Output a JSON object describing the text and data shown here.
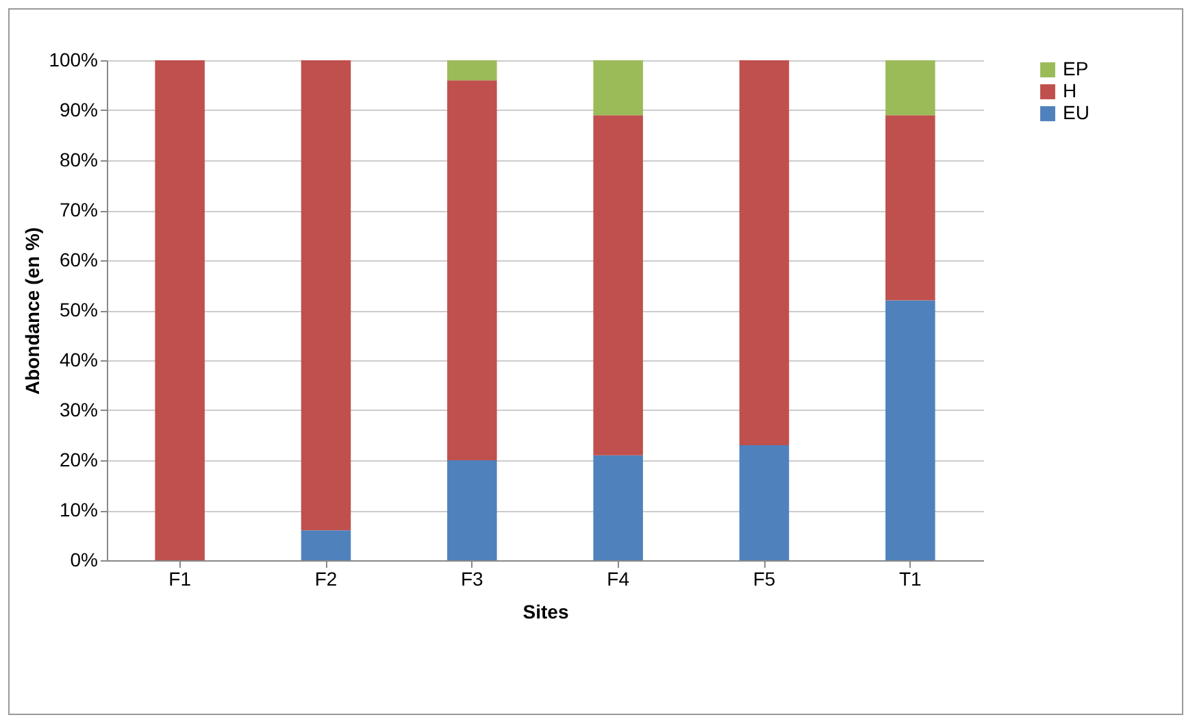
{
  "chart_data": {
    "type": "bar",
    "stacked": true,
    "xlabel": "Sites",
    "ylabel": "Abondance (en %)",
    "categories": [
      "F1",
      "F2",
      "F3",
      "F4",
      "F5",
      "T1"
    ],
    "series": [
      {
        "name": "EU",
        "color": "#4f81bd",
        "values": [
          0,
          6,
          20,
          21,
          23,
          52
        ]
      },
      {
        "name": "H",
        "color": "#c0504d",
        "values": [
          100,
          94,
          76,
          68,
          77,
          37
        ]
      },
      {
        "name": "EP",
        "color": "#9bbb59",
        "values": [
          0,
          0,
          4,
          11,
          0,
          11
        ]
      }
    ],
    "ylim": [
      0,
      100
    ],
    "yticks": [
      {
        "value": 0,
        "label": "0%"
      },
      {
        "value": 10,
        "label": "10%"
      },
      {
        "value": 20,
        "label": "20%"
      },
      {
        "value": 30,
        "label": "30%"
      },
      {
        "value": 40,
        "label": "40%"
      },
      {
        "value": 50,
        "label": "50%"
      },
      {
        "value": 60,
        "label": "60%"
      },
      {
        "value": 70,
        "label": "70%"
      },
      {
        "value": 80,
        "label": "80%"
      },
      {
        "value": 90,
        "label": "90%"
      },
      {
        "value": 100,
        "label": "100%"
      }
    ],
    "grid": "y",
    "legend": "right"
  }
}
